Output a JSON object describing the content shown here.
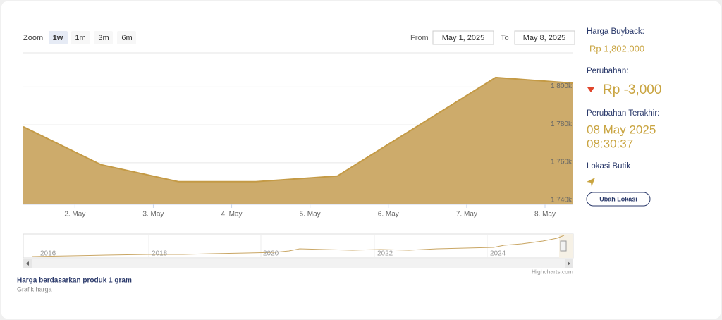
{
  "range_selector": {
    "zoom_label": "Zoom",
    "buttons": [
      "1w",
      "1m",
      "3m",
      "6m"
    ],
    "from_label": "From",
    "from": "May 1, 2025",
    "to_label": "To",
    "to": "May 8, 2025"
  },
  "chart_data": {
    "type": "area",
    "x": [
      1.34,
      2.33,
      3.32,
      4.31,
      5.35,
      7.37,
      8.36
    ],
    "xlim": [
      1.34,
      8.36
    ],
    "xticks": [
      {
        "value": 2,
        "label": "2. May"
      },
      {
        "value": 3,
        "label": "3. May"
      },
      {
        "value": 4,
        "label": "4. May"
      },
      {
        "value": 5,
        "label": "5. May"
      },
      {
        "value": 6,
        "label": "6. May"
      },
      {
        "value": 7,
        "label": "7. May"
      },
      {
        "value": 8,
        "label": "8. May"
      }
    ],
    "values": [
      1779000,
      1759000,
      1750000,
      1750000,
      1753000,
      1805000,
      1802000
    ],
    "ylim": [
      1738000,
      1818000
    ],
    "yticks": [
      {
        "value": 1740000,
        "label": "1 740k"
      },
      {
        "value": 1760000,
        "label": "1 760k"
      },
      {
        "value": 1780000,
        "label": "1 780k"
      },
      {
        "value": 1800000,
        "label": "1 800k"
      }
    ],
    "color": "#c49a45",
    "fill_color": "#cdab6b",
    "grid": true
  },
  "navigator": {
    "years": [
      "2016",
      "2018",
      "2020",
      "2022",
      "2024"
    ]
  },
  "credits": "Highcharts.com",
  "caption": {
    "title": "Harga berdasarkan produk 1 gram",
    "subtitle": "Grafik harga"
  },
  "side_panel": {
    "buyback_label": "Harga Buyback:",
    "buyback": "Rp 1,802,000",
    "change_label": "Perubahan:",
    "change": "Rp -3,000",
    "last_change_label": "Perubahan Terakhir:",
    "last_change_date": "08 May 2025",
    "last_change_time": "08:30:37",
    "location_label": "Lokasi Butik",
    "button": "Ubah Lokasi"
  }
}
